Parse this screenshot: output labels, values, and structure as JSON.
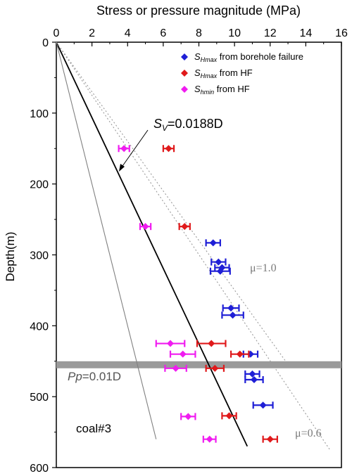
{
  "chart_data": {
    "type": "scatter",
    "xlabel": "Stress or pressure magnitude (MPa)",
    "ylabel": "Depth(m)",
    "xlim": [
      0,
      16
    ],
    "ylim": [
      0,
      600
    ],
    "y_inverted": true,
    "x_axis_position": "top",
    "x_ticks": [
      0,
      2,
      4,
      6,
      8,
      10,
      12,
      14,
      16
    ],
    "y_ticks": [
      0,
      100,
      200,
      300,
      400,
      500,
      600
    ],
    "legend": {
      "placement": "top-right",
      "entries": [
        {
          "sub": "Hmax",
          "rest": " from borehole failure",
          "color": "#1f1fd6"
        },
        {
          "sub": "Hmax",
          "rest": " from HF",
          "color": "#e0191b"
        },
        {
          "sub": "hmin",
          "rest": " from HF",
          "color": "#f01cf0"
        }
      ]
    },
    "series": [
      {
        "name": "SHmax from borehole failure",
        "color": "#1f1fd6",
        "points": [
          {
            "x": 8.8,
            "y": 283,
            "err": 0.4
          },
          {
            "x": 9.1,
            "y": 310,
            "err": 0.4
          },
          {
            "x": 9.3,
            "y": 318,
            "err": 0.4
          },
          {
            "x": 9.2,
            "y": 323,
            "err": 0.55
          },
          {
            "x": 9.8,
            "y": 375,
            "err": 0.45
          },
          {
            "x": 9.9,
            "y": 385,
            "err": 0.6
          },
          {
            "x": 10.9,
            "y": 440,
            "err": 0.4
          },
          {
            "x": 11.0,
            "y": 468,
            "err": 0.4
          },
          {
            "x": 11.1,
            "y": 476,
            "err": 0.5
          },
          {
            "x": 11.6,
            "y": 512,
            "err": 0.55
          }
        ]
      },
      {
        "name": "SHmax from HF",
        "color": "#e0191b",
        "points": [
          {
            "x": 6.3,
            "y": 150,
            "err": 0.3
          },
          {
            "x": 7.2,
            "y": 260,
            "err": 0.3
          },
          {
            "x": 8.7,
            "y": 425,
            "err": 0.8
          },
          {
            "x": 10.3,
            "y": 440,
            "err": 0.5
          },
          {
            "x": 8.9,
            "y": 460,
            "err": 0.5
          },
          {
            "x": 9.7,
            "y": 527,
            "err": 0.4
          },
          {
            "x": 12.0,
            "y": 560,
            "err": 0.4
          }
        ]
      },
      {
        "name": "Shmin from HF",
        "color": "#f01cf0",
        "points": [
          {
            "x": 3.8,
            "y": 150,
            "err": 0.3
          },
          {
            "x": 5.0,
            "y": 260,
            "err": 0.3
          },
          {
            "x": 6.4,
            "y": 425,
            "err": 0.8
          },
          {
            "x": 7.1,
            "y": 440,
            "err": 0.7
          },
          {
            "x": 6.7,
            "y": 460,
            "err": 0.6
          },
          {
            "x": 7.4,
            "y": 528,
            "err": 0.4
          },
          {
            "x": 8.6,
            "y": 560,
            "err": 0.35
          }
        ]
      }
    ],
    "lines": [
      {
        "label": "Sv",
        "slope": 0.0188,
        "depth_range": [
          0,
          570
        ],
        "style": "solid",
        "color": "#000000"
      },
      {
        "label": "Pp",
        "slope": 0.01,
        "depth_range": [
          0,
          560
        ],
        "style": "solid-thin",
        "color": "#808080"
      },
      {
        "label": "mu1.0",
        "slope": 0.0286,
        "depth_range": [
          0,
          450
        ],
        "style": "dotted",
        "color": "#9a9a9a"
      },
      {
        "label": "mu0.6",
        "slope": 0.0267,
        "depth_range": [
          0,
          575
        ],
        "style": "dotted",
        "color": "#9a9a9a"
      }
    ],
    "coal_seam_depth": 455
  },
  "annotations": {
    "sv": {
      "sym": "S",
      "sub": "V",
      "text": "=0.0188D"
    },
    "pp": {
      "sym": "Pp",
      "text": "=0.01D"
    },
    "mu10": "μ=1.0",
    "mu06": "μ=0.6",
    "coal": "coal#3"
  },
  "legend_symbol": "S"
}
